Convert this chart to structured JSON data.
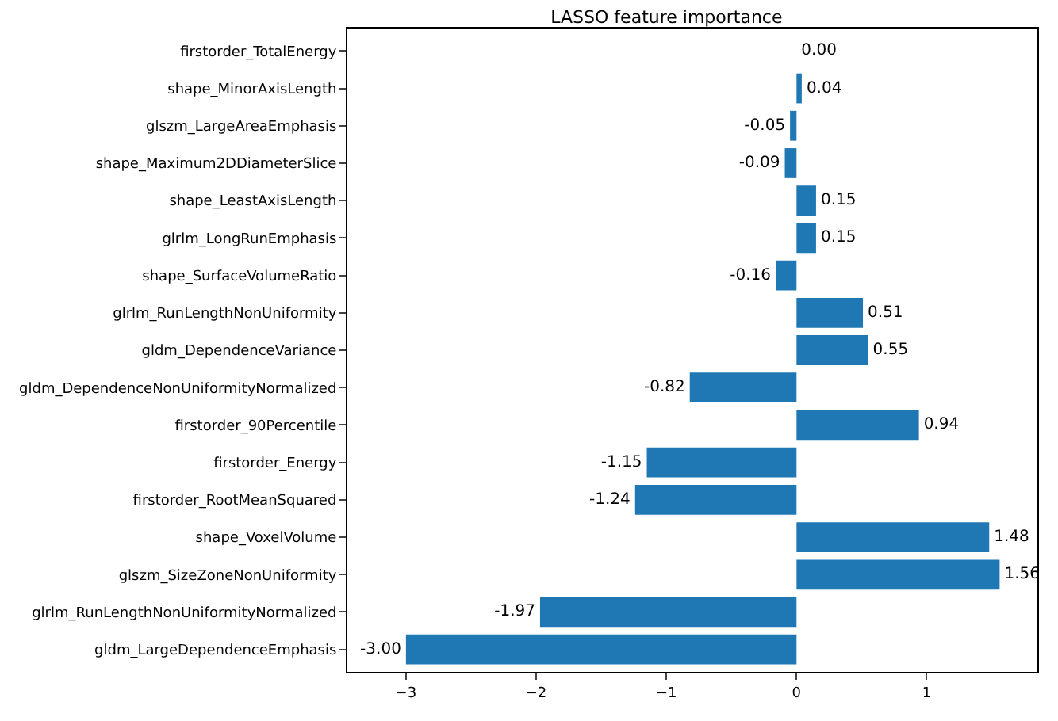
{
  "chart_data": {
    "type": "bar",
    "orientation": "horizontal",
    "title": "LASSO feature importance",
    "categories": [
      "firstorder_TotalEnergy",
      "shape_MinorAxisLength",
      "glszm_LargeAreaEmphasis",
      "shape_Maximum2DDiameterSlice",
      "shape_LeastAxisLength",
      "glrlm_LongRunEmphasis",
      "shape_SurfaceVolumeRatio",
      "glrlm_RunLengthNonUniformity",
      "gldm_DependenceVariance",
      "gldm_DependenceNonUniformityNormalized",
      "firstorder_90Percentile",
      "firstorder_Energy",
      "firstorder_RootMeanSquared",
      "shape_VoxelVolume",
      "glszm_SizeZoneNonUniformity",
      "glrlm_RunLengthNonUniformityNormalized",
      "gldm_LargeDependenceEmphasis"
    ],
    "values": [
      0.0,
      0.04,
      -0.05,
      -0.09,
      0.15,
      0.15,
      -0.16,
      0.51,
      0.55,
      -0.82,
      0.94,
      -1.15,
      -1.24,
      1.48,
      1.56,
      -1.97,
      -3.0
    ],
    "value_labels": [
      "0.00",
      "0.04",
      "-0.05",
      "-0.09",
      "0.15",
      "0.15",
      "-0.16",
      "0.51",
      "0.55",
      "-0.82",
      "0.94",
      "-1.15",
      "-1.24",
      "1.48",
      "1.56",
      "-1.97",
      "-3.00"
    ],
    "color": "#1f77b4",
    "xlim": [
      -3.45,
      1.85
    ],
    "xticks": [
      -3,
      -2,
      -1,
      0,
      1
    ],
    "grid": false
  }
}
